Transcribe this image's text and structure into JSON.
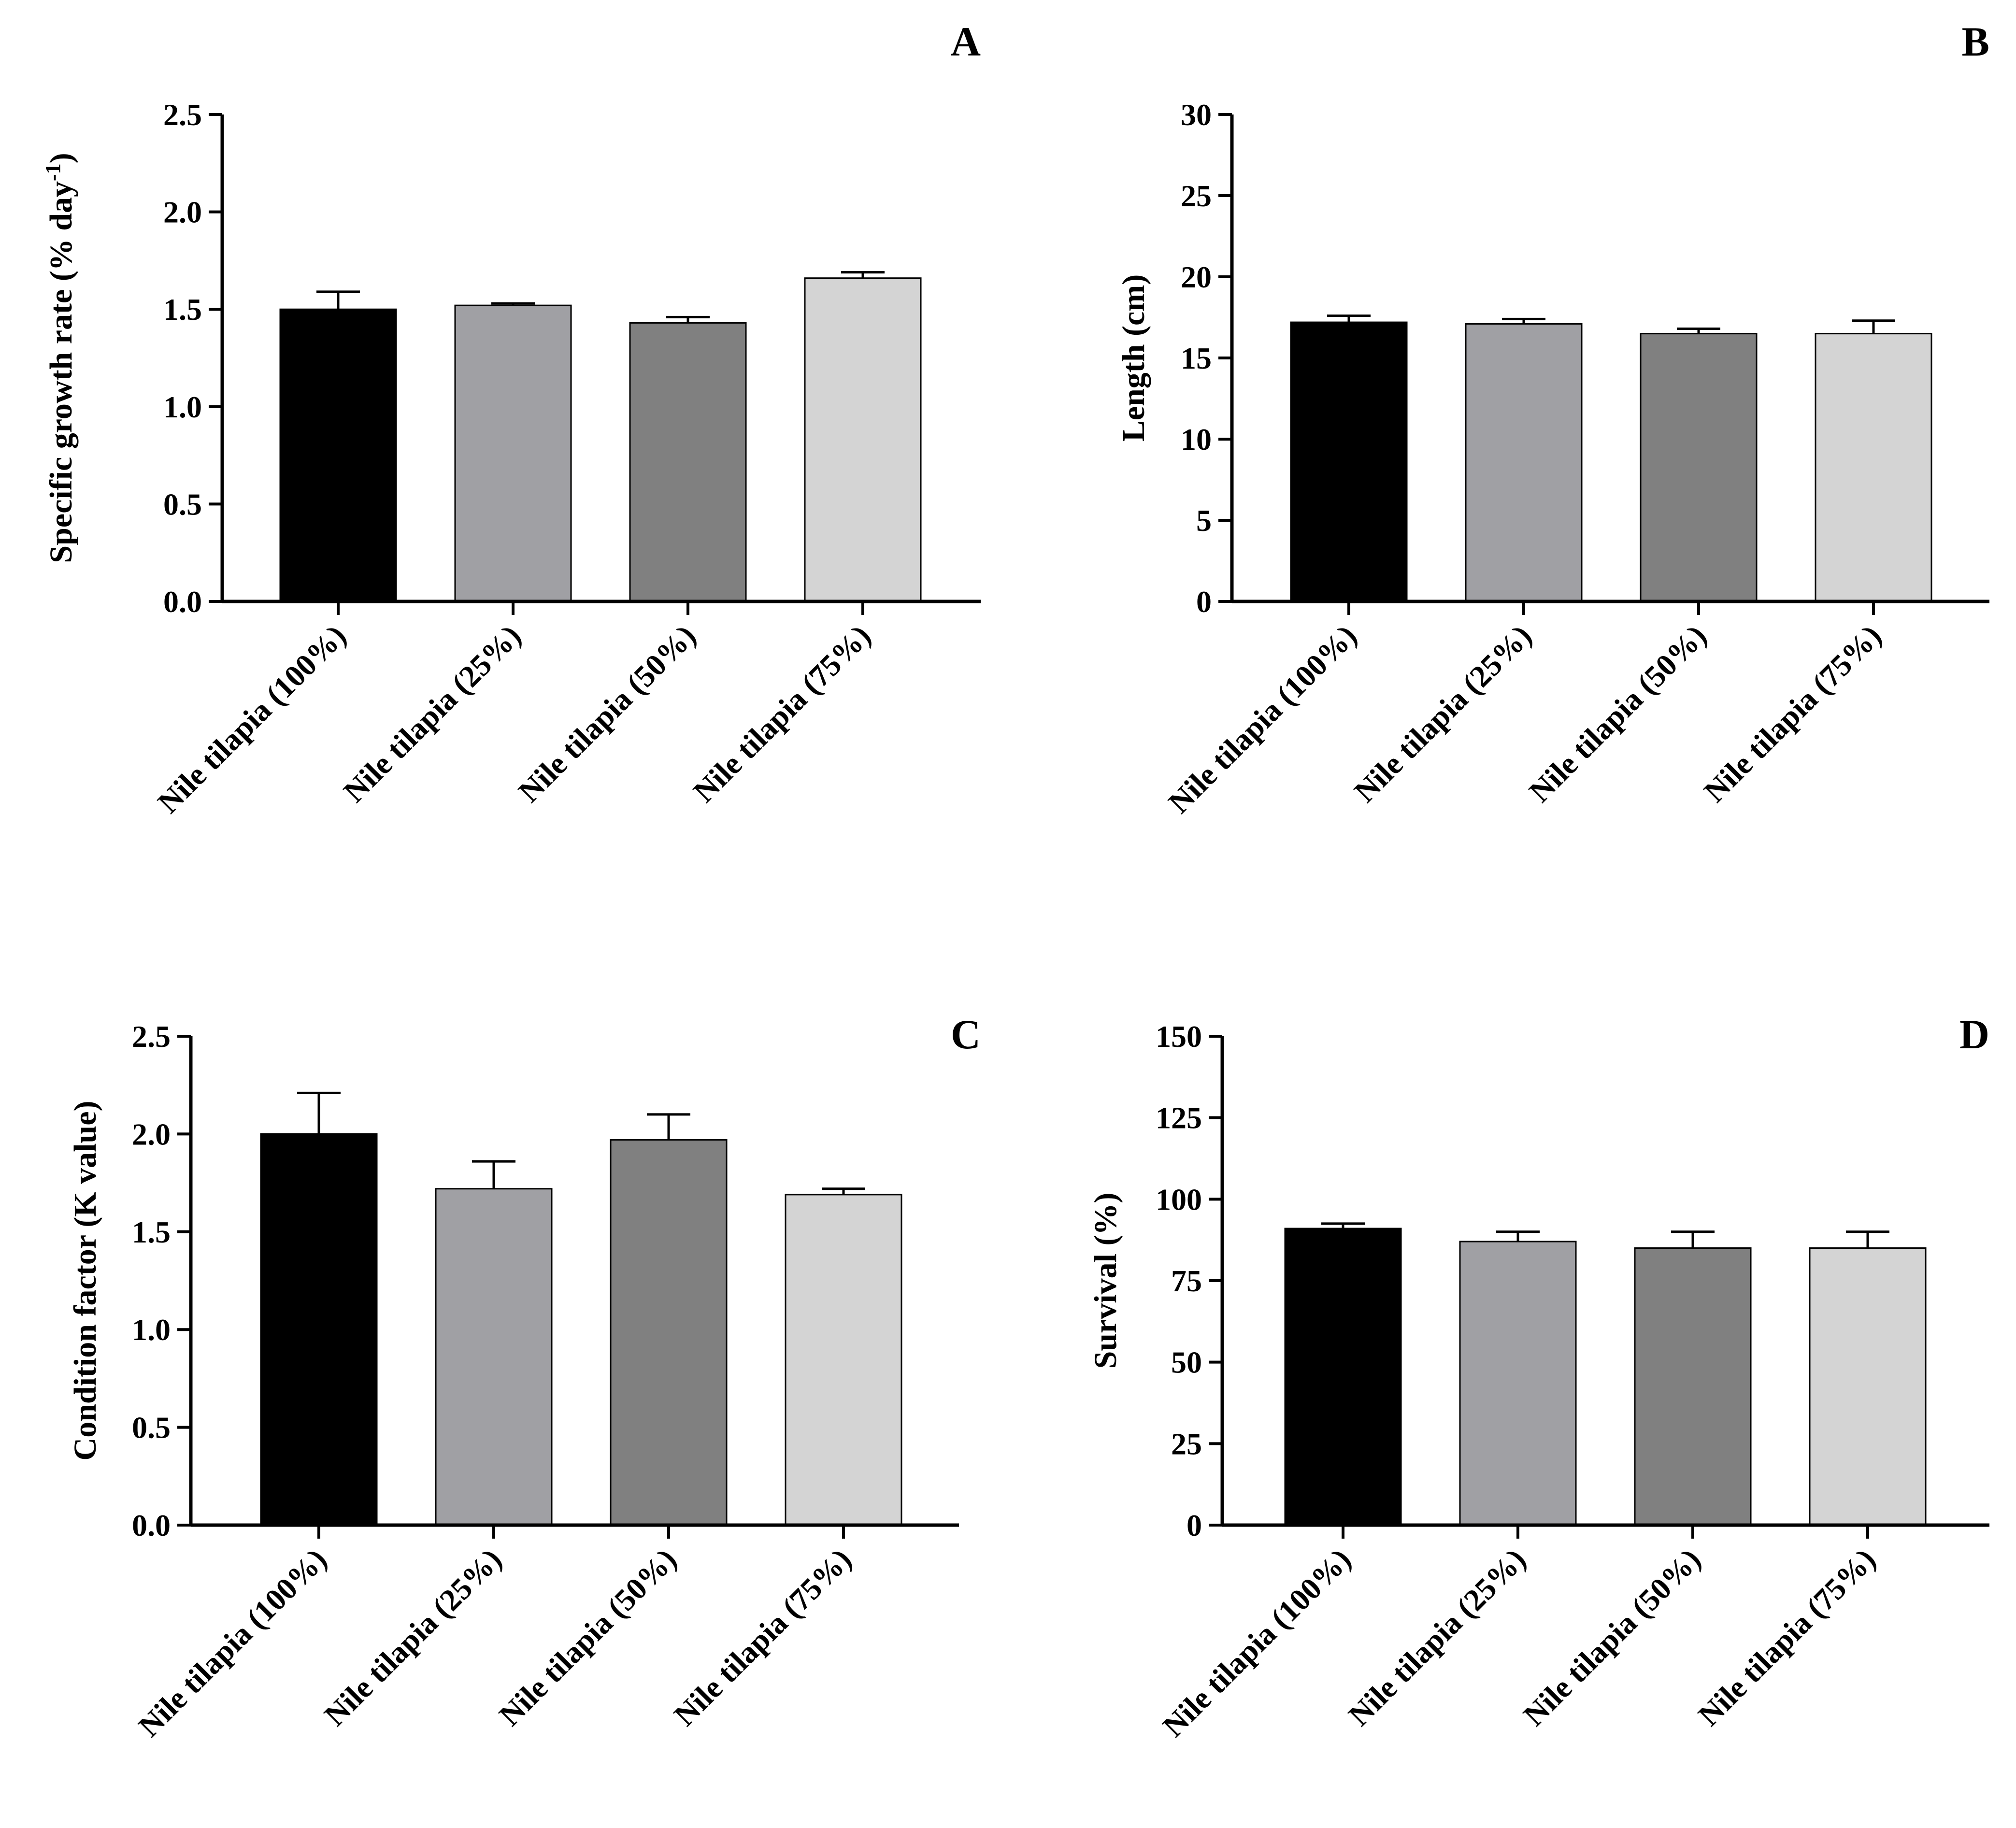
{
  "figure": {
    "categories": [
      "Nile tilapia (100%)",
      "Nile tilapia (25%)",
      "Nile tilapia (50%)",
      "Nile tilapia (75%)"
    ],
    "bar_colors": [
      "#000000",
      "#a0a0a4",
      "#808080",
      "#d4d4d4"
    ],
    "axis_color": "#000000"
  },
  "chart_data": [
    {
      "panel": "A",
      "type": "bar",
      "title": "",
      "xlabel": "",
      "ylabel": "Specific growth rate (% day",
      "ylabel_superscript": "-1",
      "ylabel_suffix": ")",
      "ylim": [
        0,
        2.5
      ],
      "yticks": [
        "0.0",
        "0.5",
        "1.0",
        "1.5",
        "2.0",
        "2.5"
      ],
      "categories": [
        "Nile tilapia (100%)",
        "Nile tilapia (25%)",
        "Nile tilapia (50%)",
        "Nile tilapia (75%)"
      ],
      "values": [
        1.5,
        1.52,
        1.43,
        1.66
      ],
      "errors": [
        0.09,
        0.01,
        0.03,
        0.03
      ]
    },
    {
      "panel": "B",
      "type": "bar",
      "title": "",
      "xlabel": "",
      "ylabel": "Length (cm)",
      "ylim": [
        0,
        30
      ],
      "yticks": [
        "0",
        "5",
        "10",
        "15",
        "20",
        "25",
        "30"
      ],
      "categories": [
        "Nile tilapia (100%)",
        "Nile tilapia (25%)",
        "Nile tilapia (50%)",
        "Nile tilapia (75%)"
      ],
      "values": [
        17.2,
        17.1,
        16.5,
        16.5
      ],
      "errors": [
        0.4,
        0.3,
        0.3,
        0.8
      ]
    },
    {
      "panel": "C",
      "type": "bar",
      "title": "",
      "xlabel": "",
      "ylabel": "Condition factor (K value)",
      "ylim": [
        0,
        2.5
      ],
      "yticks": [
        "0.0",
        "0.5",
        "1.0",
        "1.5",
        "2.0",
        "2.5"
      ],
      "categories": [
        "Nile tilapia (100%)",
        "Nile tilapia (25%)",
        "Nile tilapia (50%)",
        "Nile tilapia (75%)"
      ],
      "values": [
        2.0,
        1.72,
        1.97,
        1.69
      ],
      "errors": [
        0.21,
        0.14,
        0.13,
        0.03
      ]
    },
    {
      "panel": "D",
      "type": "bar",
      "title": "",
      "xlabel": "",
      "ylabel": "Survival (%)",
      "ylim": [
        0,
        150
      ],
      "yticks": [
        "0",
        "25",
        "50",
        "75",
        "100",
        "125",
        "150"
      ],
      "categories": [
        "Nile tilapia (100%)",
        "Nile tilapia (25%)",
        "Nile tilapia (50%)",
        "Nile tilapia (75%)"
      ],
      "values": [
        91,
        87,
        85,
        85
      ],
      "errors": [
        1.5,
        3,
        5,
        5
      ]
    }
  ]
}
